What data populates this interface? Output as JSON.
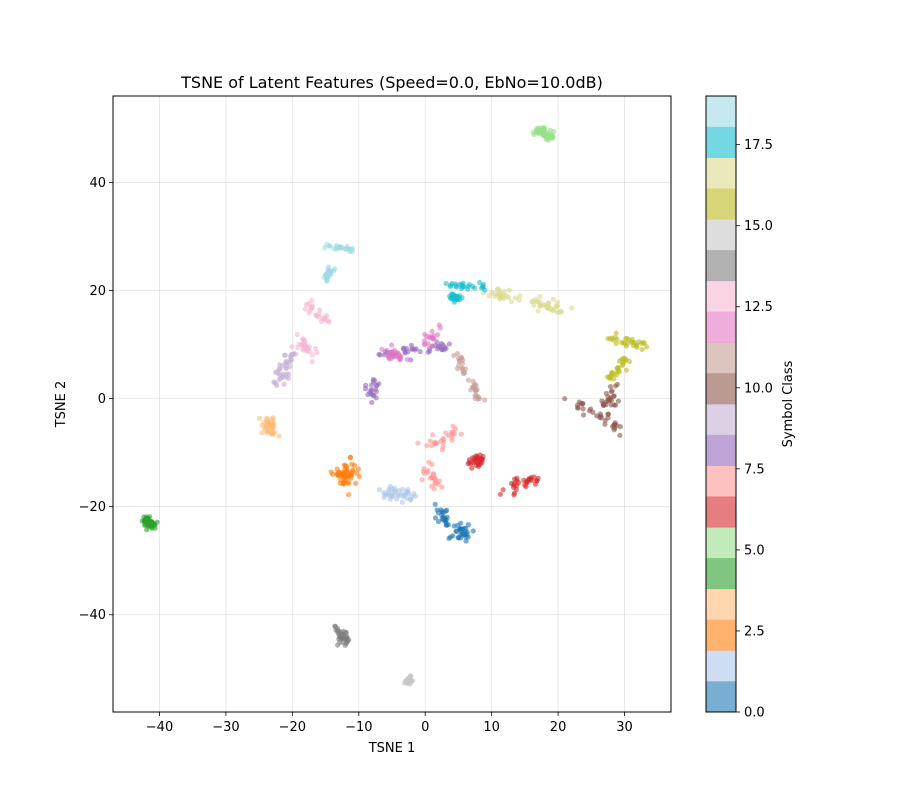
{
  "chart_data": {
    "type": "scatter",
    "title": "TSNE of Latent Features (Speed=0.0, EbNo=10.0dB)",
    "xlabel": "TSNE 1",
    "ylabel": "TSNE 2",
    "xlim": [
      -47,
      37
    ],
    "ylim": [
      -58,
      56
    ],
    "xticks": [
      -40,
      -30,
      -20,
      -10,
      0,
      10,
      20,
      30
    ],
    "xtick_labels": [
      "−40",
      "−30",
      "−20",
      "−10",
      "0",
      "10",
      "20",
      "30"
    ],
    "yticks": [
      -40,
      -20,
      0,
      20,
      40
    ],
    "ytick_labels": [
      "−40",
      "−20",
      "0",
      "20",
      "40"
    ],
    "grid": true,
    "marker_alpha": 0.6,
    "colorbar": {
      "label": "Symbol Class",
      "range": [
        0,
        19
      ],
      "ticks": [
        0.0,
        2.5,
        5.0,
        7.5,
        10.0,
        12.5,
        15.0,
        17.5
      ],
      "tick_labels": [
        "0.0",
        "2.5",
        "5.0",
        "7.5",
        "10.0",
        "12.5",
        "15.0",
        "17.5"
      ],
      "colors": [
        "#1f77b4",
        "#aec7e8",
        "#ff7f0e",
        "#ffbb78",
        "#2ca02c",
        "#98df8a",
        "#d62728",
        "#ff9896",
        "#9467bd",
        "#c5b0d5",
        "#8c564b",
        "#c49c94",
        "#e377c2",
        "#f7b6d2",
        "#7f7f7f",
        "#c7c7c7",
        "#bcbd22",
        "#dbdb8d",
        "#17becf",
        "#9edae5"
      ]
    },
    "clusters": [
      {
        "class": 0,
        "segments": [
          [
            2,
            -20.5,
            3,
            -23
          ],
          [
            6,
            -24,
            5,
            -25.5
          ]
        ],
        "spread": 1.2,
        "n": 55
      },
      {
        "class": 1,
        "segments": [
          [
            -6,
            -17.5,
            -2,
            -18
          ]
        ],
        "spread": 1.2,
        "n": 38
      },
      {
        "class": 2,
        "segments": [
          [
            -12,
            -13,
            -12,
            -15
          ]
        ],
        "spread": 1.7,
        "n": 62
      },
      {
        "class": 3,
        "segments": [
          [
            -24,
            -3,
            -23,
            -7
          ]
        ],
        "spread": 0.9,
        "n": 40
      },
      {
        "class": 4,
        "segments": [
          [
            -42,
            -22.5,
            -41,
            -23.5
          ]
        ],
        "spread": 0.8,
        "n": 50
      },
      {
        "class": 5,
        "segments": [
          [
            17,
            49.5,
            19,
            48.5
          ]
        ],
        "spread": 0.9,
        "n": 45
      },
      {
        "class": 6,
        "segments": [
          [
            8,
            -11,
            8,
            -12
          ],
          [
            12,
            -17,
            17,
            -14.5
          ]
        ],
        "spread": 1.1,
        "n": 58
      },
      {
        "class": 7,
        "segments": [
          [
            0,
            -9,
            5,
            -6.5
          ],
          [
            0,
            -13,
            2,
            -16
          ]
        ],
        "spread": 1.2,
        "n": 52
      },
      {
        "class": 8,
        "segments": [
          [
            -8,
            4,
            -8,
            0
          ],
          [
            -7,
            8,
            4,
            10
          ]
        ],
        "spread": 1.1,
        "n": 62
      },
      {
        "class": 9,
        "segments": [
          [
            -20,
            8,
            -22,
            3
          ]
        ],
        "spread": 1.1,
        "n": 40
      },
      {
        "class": 10,
        "segments": [
          [
            22,
            0,
            29,
            -6
          ],
          [
            27,
            -2,
            29,
            2
          ]
        ],
        "spread": 1.1,
        "n": 58
      },
      {
        "class": 11,
        "segments": [
          [
            5,
            8,
            6,
            5
          ],
          [
            8,
            0,
            7,
            3
          ]
        ],
        "spread": 0.8,
        "n": 36
      },
      {
        "class": 12,
        "segments": [
          [
            -6,
            9,
            -3,
            7.5
          ],
          [
            0,
            10,
            2,
            13
          ]
        ],
        "spread": 1.0,
        "n": 42
      },
      {
        "class": 13,
        "segments": [
          [
            -18,
            17,
            -14,
            14
          ],
          [
            -19,
            11,
            -17,
            8
          ]
        ],
        "spread": 1.0,
        "n": 50
      },
      {
        "class": 14,
        "segments": [
          [
            -13,
            -43,
            -12,
            -45
          ]
        ],
        "spread": 0.9,
        "n": 38
      },
      {
        "class": 15,
        "segments": [
          [
            -2.5,
            -51.5,
            -2.5,
            -52.5
          ]
        ],
        "spread": 0.5,
        "n": 30
      },
      {
        "class": 16,
        "segments": [
          [
            28,
            11.5,
            33,
            9.5
          ],
          [
            28,
            4,
            30,
            7
          ]
        ],
        "spread": 0.9,
        "n": 58
      },
      {
        "class": 17,
        "segments": [
          [
            9,
            20,
            14,
            18
          ],
          [
            16,
            18,
            21,
            16
          ]
        ],
        "spread": 1.0,
        "n": 60
      },
      {
        "class": 18,
        "segments": [
          [
            3,
            21,
            9,
            20.5
          ],
          [
            4,
            19,
            5,
            18.5
          ]
        ],
        "spread": 0.7,
        "n": 52
      },
      {
        "class": 19,
        "segments": [
          [
            -15,
            28.5,
            -11,
            27.5
          ],
          [
            -14,
            24,
            -15,
            22
          ]
        ],
        "spread": 0.6,
        "n": 48
      }
    ]
  }
}
